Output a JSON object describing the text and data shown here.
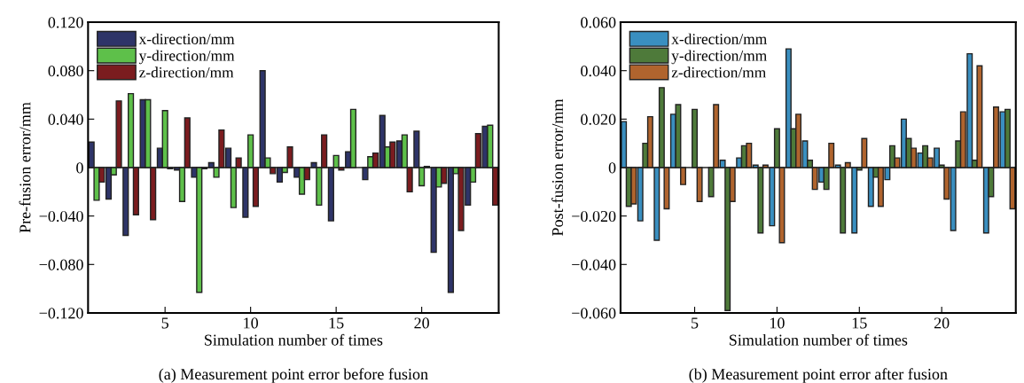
{
  "chart_data": [
    {
      "type": "bar",
      "title": "(a) Measurement point error before fusion",
      "xlabel": "Simulation number of times",
      "ylabel": "Pre-fusion error/mm",
      "x": [
        1,
        2,
        3,
        4,
        5,
        6,
        7,
        8,
        9,
        10,
        11,
        12,
        13,
        14,
        15,
        16,
        17,
        18,
        19,
        20,
        21,
        22,
        23,
        24
      ],
      "xlim": [
        0.5,
        24.5
      ],
      "xticks": [
        5,
        10,
        15,
        20
      ],
      "ylim": [
        -0.12,
        0.12
      ],
      "yticks": [
        {
          "value": -0.12,
          "label": "−0.120"
        },
        {
          "value": -0.08,
          "label": "−0.080"
        },
        {
          "value": -0.04,
          "label": "−0.040"
        },
        {
          "value": 0,
          "label": "0"
        },
        {
          "value": 0.04,
          "label": "0.040"
        },
        {
          "value": 0.08,
          "label": "0.080"
        },
        {
          "value": 0.12,
          "label": "0.120"
        }
      ],
      "legend": "top left",
      "grid": false,
      "ref_lines": [
        {
          "axis": "y",
          "value": 0
        }
      ],
      "series": [
        {
          "name": "x-direction/mm",
          "color": "#2e3468",
          "values": [
            0.021,
            -0.026,
            -0.056,
            0.056,
            0.016,
            -0.002,
            -0.008,
            0.004,
            0.016,
            -0.041,
            0.08,
            -0.012,
            -0.008,
            0.004,
            -0.044,
            0.013,
            -0.01,
            0.043,
            0.022,
            0.03,
            -0.07,
            -0.103,
            -0.031,
            0.034
          ]
        },
        {
          "name": "y-direction/mm",
          "color": "#5ec04a",
          "values": [
            -0.027,
            -0.006,
            0.061,
            0.056,
            0.047,
            -0.028,
            -0.103,
            -0.008,
            -0.033,
            0.027,
            0.008,
            -0.004,
            -0.022,
            -0.031,
            0.01,
            0.048,
            0.009,
            0.017,
            0.027,
            -0.015,
            -0.016,
            -0.005,
            -0.012,
            0.035
          ]
        },
        {
          "name": "z-direction/mm",
          "color": "#7b1c1f",
          "values": [
            -0.012,
            0.055,
            -0.039,
            -0.043,
            -0.001,
            0.041,
            -0.001,
            0.031,
            0.008,
            -0.032,
            -0.005,
            0.017,
            -0.01,
            0.027,
            -0.002,
            null,
            0.012,
            0.021,
            -0.02,
            0.001,
            -0.013,
            -0.052,
            0.028,
            -0.031
          ]
        }
      ]
    },
    {
      "type": "bar",
      "title": "(b) Measurement point error after fusion",
      "xlabel": "Simulation number of times",
      "ylabel": "Post-fusion error/mm",
      "x": [
        1,
        2,
        3,
        4,
        5,
        6,
        7,
        8,
        9,
        10,
        11,
        12,
        13,
        14,
        15,
        16,
        17,
        18,
        19,
        20,
        21,
        22,
        23,
        24
      ],
      "xlim": [
        0.5,
        24.5
      ],
      "xticks": [
        5,
        10,
        15,
        20
      ],
      "ylim": [
        -0.06,
        0.06
      ],
      "yticks": [
        {
          "value": -0.06,
          "label": "−0.060"
        },
        {
          "value": -0.04,
          "label": "−0.040"
        },
        {
          "value": -0.02,
          "label": "−0.020"
        },
        {
          "value": 0,
          "label": "0"
        },
        {
          "value": 0.02,
          "label": "0.020"
        },
        {
          "value": 0.04,
          "label": "0.040"
        },
        {
          "value": 0.06,
          "label": "0.060"
        }
      ],
      "legend": "top left",
      "grid": false,
      "ref_lines": [
        {
          "axis": "y",
          "value": 0
        }
      ],
      "series": [
        {
          "name": "x-direction/mm",
          "color": "#3a8fc0",
          "values": [
            0.019,
            -0.022,
            -0.03,
            0.022,
            null,
            null,
            0.003,
            0.004,
            0.001,
            -0.024,
            0.049,
            0.011,
            -0.006,
            0.001,
            -0.027,
            -0.016,
            -0.005,
            0.02,
            0.006,
            0.008,
            -0.026,
            0.047,
            -0.027,
            0.023
          ]
        },
        {
          "name": "y-direction/mm",
          "color": "#4e7a3a",
          "values": [
            -0.016,
            0.01,
            0.033,
            0.026,
            0.024,
            -0.012,
            -0.059,
            0.009,
            -0.027,
            0.016,
            0.016,
            0.003,
            -0.009,
            -0.027,
            -0.001,
            -0.004,
            0.009,
            0.012,
            0.009,
            0.001,
            0.011,
            0.003,
            -0.012,
            0.024
          ]
        },
        {
          "name": "z-direction/mm",
          "color": "#b0642e",
          "values": [
            -0.015,
            0.021,
            -0.017,
            -0.007,
            -0.014,
            0.026,
            -0.014,
            0.01,
            0.001,
            -0.031,
            0.022,
            -0.009,
            0.01,
            0.002,
            0.012,
            -0.016,
            0.004,
            0.008,
            0.004,
            -0.013,
            0.023,
            0.042,
            0.025,
            -0.017
          ]
        }
      ]
    }
  ]
}
